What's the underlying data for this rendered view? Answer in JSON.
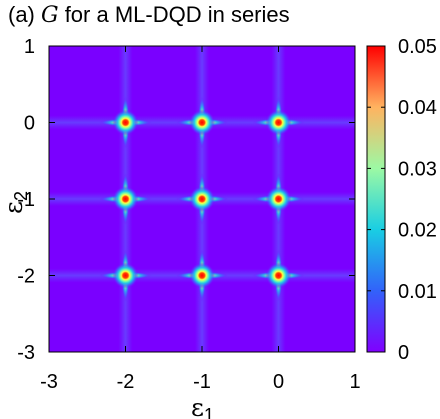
{
  "chart_data": {
    "type": "heatmap",
    "title_prefix": "(a) ",
    "title_variable": "G",
    "title_suffix": " for a ML-DQD in series",
    "xlabel": "ε",
    "xlabel_subscript": "1",
    "ylabel": "ε",
    "ylabel_subscript": "2",
    "xlim": [
      -3,
      1
    ],
    "ylim": [
      -3,
      1
    ],
    "x_ticks": [
      "-3",
      "-2",
      "-1",
      "0",
      "1"
    ],
    "y_ticks": [
      "-3",
      "-2",
      "-1",
      "0",
      "1"
    ],
    "colorbar": {
      "range": [
        0,
        0.05
      ],
      "tick_labels": [
        "0",
        "0.01",
        "0.02",
        "0.03",
        "0.04",
        "0.05"
      ],
      "colormap": "rainbow"
    },
    "peaks": [
      {
        "x": -2,
        "y": 0,
        "value": 0.05
      },
      {
        "x": -1,
        "y": 0,
        "value": 0.05
      },
      {
        "x": 0,
        "y": 0,
        "value": 0.05
      },
      {
        "x": -2,
        "y": -1,
        "value": 0.05
      },
      {
        "x": -1,
        "y": -1,
        "value": 0.05
      },
      {
        "x": 0,
        "y": -1,
        "value": 0.05
      },
      {
        "x": -2,
        "y": -2,
        "value": 0.05
      },
      {
        "x": -1,
        "y": -2,
        "value": 0.05
      },
      {
        "x": 0,
        "y": -2,
        "value": 0.05
      }
    ],
    "background_value": 0.001,
    "grid": false
  }
}
